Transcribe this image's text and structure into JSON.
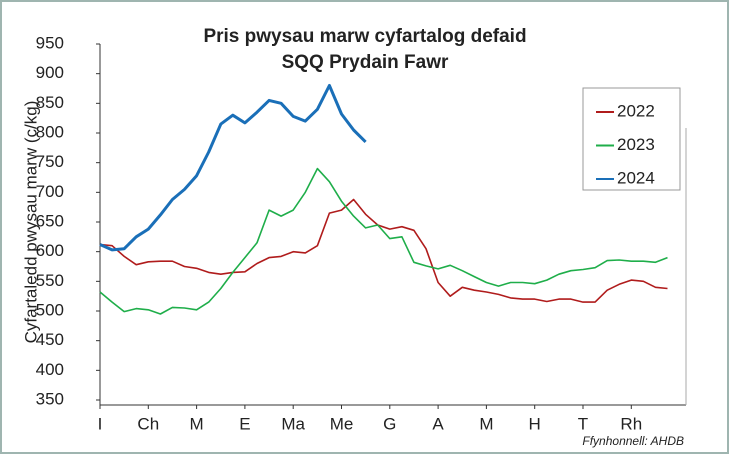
{
  "chart_data": {
    "type": "line",
    "title": [
      "Pris pwysau marw cyfartalog defaid",
      "SQQ Prydain Fawr"
    ],
    "ylabel": "Cyfartaledd pwysau marw (c/kg)",
    "source": "Ffynhonnell: AHDB",
    "x": [
      0,
      0.25,
      0.5,
      0.75,
      1,
      1.25,
      1.5,
      1.75,
      2,
      2.25,
      2.5,
      2.75,
      3,
      3.25,
      3.5,
      3.75,
      4,
      4.25,
      4.5,
      4.75,
      5,
      5.25,
      5.5,
      5.75,
      6,
      6.25,
      6.5,
      6.75,
      7,
      7.25,
      7.5,
      7.75,
      8,
      8.25,
      8.5,
      8.75,
      9,
      9.25,
      9.5,
      9.75,
      10,
      10.25,
      10.5,
      10.75,
      11,
      11.25,
      11.5,
      11.75
    ],
    "xlim": [
      0,
      12
    ],
    "xticks": [
      {
        "value": 0,
        "label": "I"
      },
      {
        "value": 1,
        "label": "Ch"
      },
      {
        "value": 2,
        "label": "M"
      },
      {
        "value": 3,
        "label": "E"
      },
      {
        "value": 4,
        "label": "Ma"
      },
      {
        "value": 5,
        "label": "Me"
      },
      {
        "value": 6,
        "label": "G"
      },
      {
        "value": 7,
        "label": "A"
      },
      {
        "value": 8,
        "label": "M"
      },
      {
        "value": 9,
        "label": "H"
      },
      {
        "value": 10,
        "label": "T"
      },
      {
        "value": 11,
        "label": "Rh"
      }
    ],
    "ylim": [
      350,
      950
    ],
    "yticks": [
      350,
      400,
      450,
      500,
      550,
      600,
      650,
      700,
      750,
      800,
      850,
      900,
      950
    ],
    "legend": "upper right",
    "series": [
      {
        "name": "2022",
        "color": "#b01c1c",
        "values": [
          612,
          610,
          592,
          578,
          583,
          584,
          584,
          575,
          572,
          565,
          562,
          565,
          566,
          580,
          590,
          592,
          600,
          598,
          610,
          665,
          670,
          688,
          663,
          645,
          638,
          642,
          636,
          605,
          548,
          525,
          540,
          535,
          532,
          528,
          522,
          520,
          520,
          516,
          520,
          520,
          515,
          515,
          535,
          545,
          552,
          550,
          540,
          538
        ]
      },
      {
        "name": "2023",
        "color": "#1fae4a",
        "values": [
          532,
          515,
          499,
          504,
          502,
          495,
          506,
          505,
          502,
          515,
          538,
          565,
          590,
          615,
          670,
          660,
          670,
          700,
          740,
          718,
          685,
          660,
          640,
          645,
          622,
          625,
          582,
          576,
          571,
          577,
          568,
          558,
          548,
          542,
          548,
          548,
          546,
          552,
          562,
          568,
          570,
          573,
          585,
          586,
          584,
          584,
          582,
          590
        ]
      },
      {
        "name": "2024",
        "color": "#1a6fb8",
        "values": [
          612,
          603,
          605,
          625,
          638,
          662,
          688,
          705,
          728,
          768,
          815,
          830,
          817,
          835,
          855,
          850,
          828,
          820,
          840,
          880,
          832,
          805,
          785,
          null,
          null,
          null,
          null,
          null,
          null,
          null,
          null,
          null,
          null,
          null,
          null,
          null,
          null,
          null,
          null,
          null,
          null,
          null,
          null,
          null,
          null,
          null,
          null,
          null
        ]
      }
    ]
  }
}
